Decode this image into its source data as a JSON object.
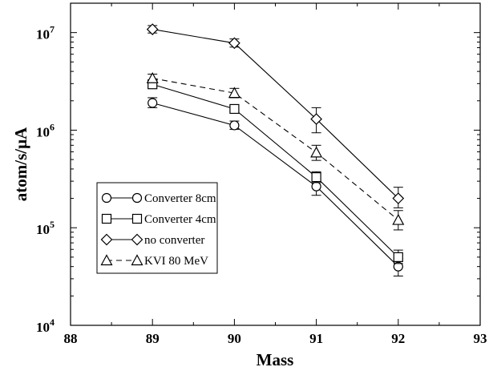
{
  "chart_data": {
    "type": "line",
    "xlabel": "Mass",
    "ylabel": "atom/s/μA",
    "xlim": [
      88,
      93
    ],
    "ylim": [
      10000,
      20000000
    ],
    "yscale": "log",
    "legend_position": "lower-left",
    "grid": false,
    "x_ticks": [
      "88",
      "89",
      "90",
      "91",
      "92",
      "93"
    ],
    "y_ticks": [
      {
        "base": "10",
        "exp": "4"
      },
      {
        "base": "10",
        "exp": "5"
      },
      {
        "base": "10",
        "exp": "6"
      },
      {
        "base": "10",
        "exp": "7"
      }
    ],
    "series": [
      {
        "name": "Converter 8cm",
        "marker": "circle",
        "line": "solid",
        "x": [
          89,
          90,
          91,
          92
        ],
        "y": [
          1900000,
          1120000,
          265000,
          40000
        ],
        "err_low": [
          1700000,
          1020000,
          215000,
          32000
        ],
        "err_high": [
          2150000,
          1240000,
          310000,
          48000
        ]
      },
      {
        "name": "Converter  4cm",
        "marker": "square",
        "line": "solid",
        "x": [
          89,
          90,
          91,
          92
        ],
        "y": [
          2950000,
          1650000,
          330000,
          50000
        ],
        "err_low": [
          2750000,
          1550000,
          290000,
          43000
        ],
        "err_high": [
          3200000,
          1770000,
          375000,
          59000
        ]
      },
      {
        "name": "no converter",
        "marker": "diamond",
        "line": "solid",
        "x": [
          89,
          90,
          91,
          92
        ],
        "y": [
          10800000,
          7800000,
          1300000,
          200000
        ],
        "err_low": [
          9900000,
          7100000,
          940000,
          160000
        ],
        "err_high": [
          11800000,
          8600000,
          1700000,
          260000
        ]
      },
      {
        "name": "KVI 80 MeV",
        "marker": "triangle",
        "line": "dashed",
        "x": [
          89,
          90,
          91,
          92
        ],
        "y": [
          3400000,
          2400000,
          590000,
          120000
        ],
        "err_low": [
          3100000,
          2150000,
          490000,
          95000
        ],
        "err_high": [
          3750000,
          2680000,
          700000,
          150000
        ]
      }
    ]
  }
}
